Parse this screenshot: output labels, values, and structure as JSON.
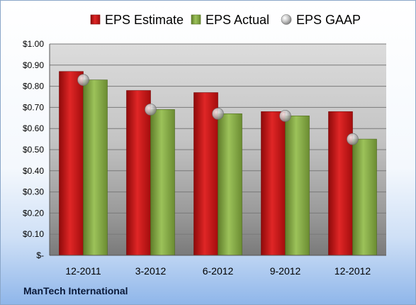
{
  "company": "ManTech International",
  "chart_data": {
    "type": "bar",
    "categories": [
      "12-2011",
      "3-2012",
      "6-2012",
      "9-2012",
      "12-2012"
    ],
    "series": [
      {
        "name": "EPS Estimate",
        "type": "bar",
        "color": "#cc1414",
        "values": [
          0.87,
          0.78,
          0.77,
          0.68,
          0.68
        ]
      },
      {
        "name": "EPS Actual",
        "type": "bar",
        "color": "#8db04a",
        "values": [
          0.83,
          0.69,
          0.67,
          0.66,
          0.55
        ]
      },
      {
        "name": "EPS GAAP",
        "type": "scatter",
        "color": "#c0c0c0",
        "values": [
          0.83,
          0.69,
          0.67,
          0.66,
          0.55
        ]
      }
    ],
    "ylim": [
      0,
      1.0
    ],
    "yticks": [
      0,
      0.1,
      0.2,
      0.3,
      0.4,
      0.5,
      0.6,
      0.7,
      0.8,
      0.9,
      1.0
    ],
    "ytick_labels": [
      "$-",
      "$0.10",
      "$0.20",
      "$0.30",
      "$0.40",
      "$0.50",
      "$0.60",
      "$0.70",
      "$0.80",
      "$0.90",
      "$1.00"
    ],
    "xlabel": "",
    "ylabel": "",
    "grid": true,
    "legend": "top"
  }
}
